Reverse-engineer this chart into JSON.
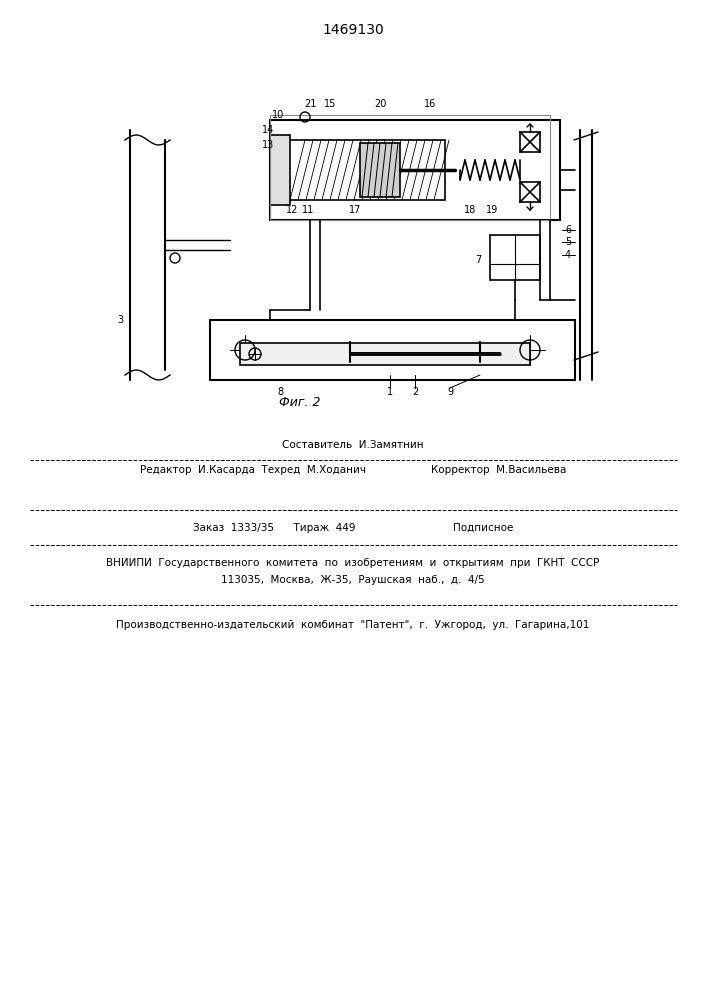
{
  "title": "1469130",
  "fig_label": "Фиг. 2",
  "bg_color": "#ffffff",
  "line_color": "#000000",
  "footer_lines": [
    "Составитель  И.Замятнин",
    "Редактор  И.Касарда  Техред  М.Ходанич                    Корректор  М.Васильева",
    "Заказ  1333/35      Тираж  449                              Подписное",
    "ВНИИПИ  Государственного  комитета  по  изобретениям  и  открытиям  при  ГКНТ  СССР",
    "113035,  Москва,  Ж-35,  Раушская  наб.,  д.  4/5",
    "Производственно-издательский  комбинат  \"Патент\",  г.  Ужгород,  ул.  Гагарина,101"
  ]
}
